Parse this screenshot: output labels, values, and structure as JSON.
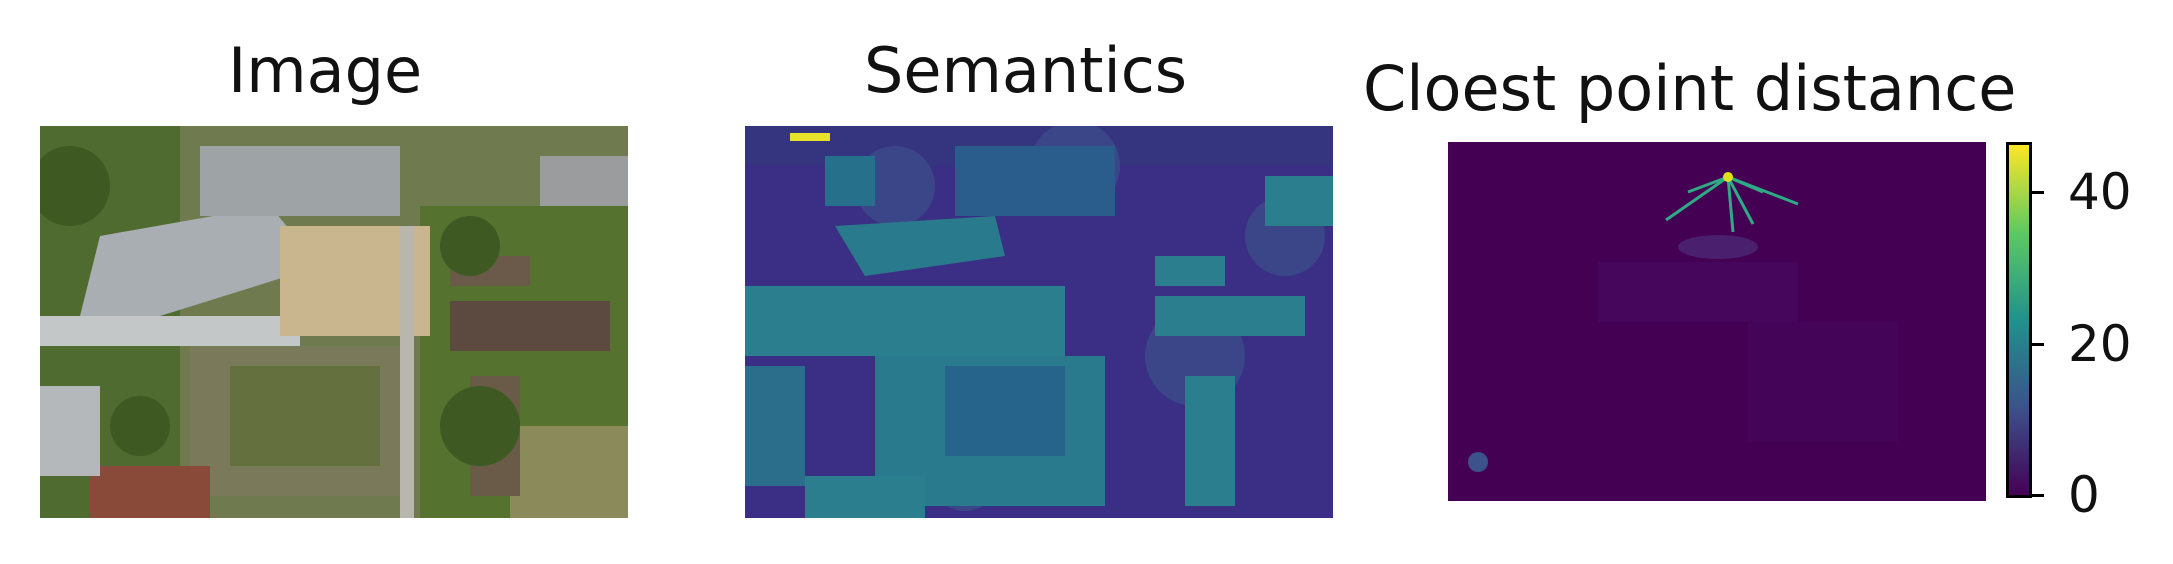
{
  "panels": [
    {
      "title": "Image"
    },
    {
      "title": "Semantics"
    },
    {
      "title": "Cloest point distance"
    }
  ],
  "colorbar": {
    "ticks": [
      "40",
      "20",
      "0"
    ],
    "range": [
      0,
      45
    ],
    "colormap": "viridis",
    "colors": [
      "#440154",
      "#3b528b",
      "#21918c",
      "#5ec962",
      "#fde725"
    ]
  }
}
